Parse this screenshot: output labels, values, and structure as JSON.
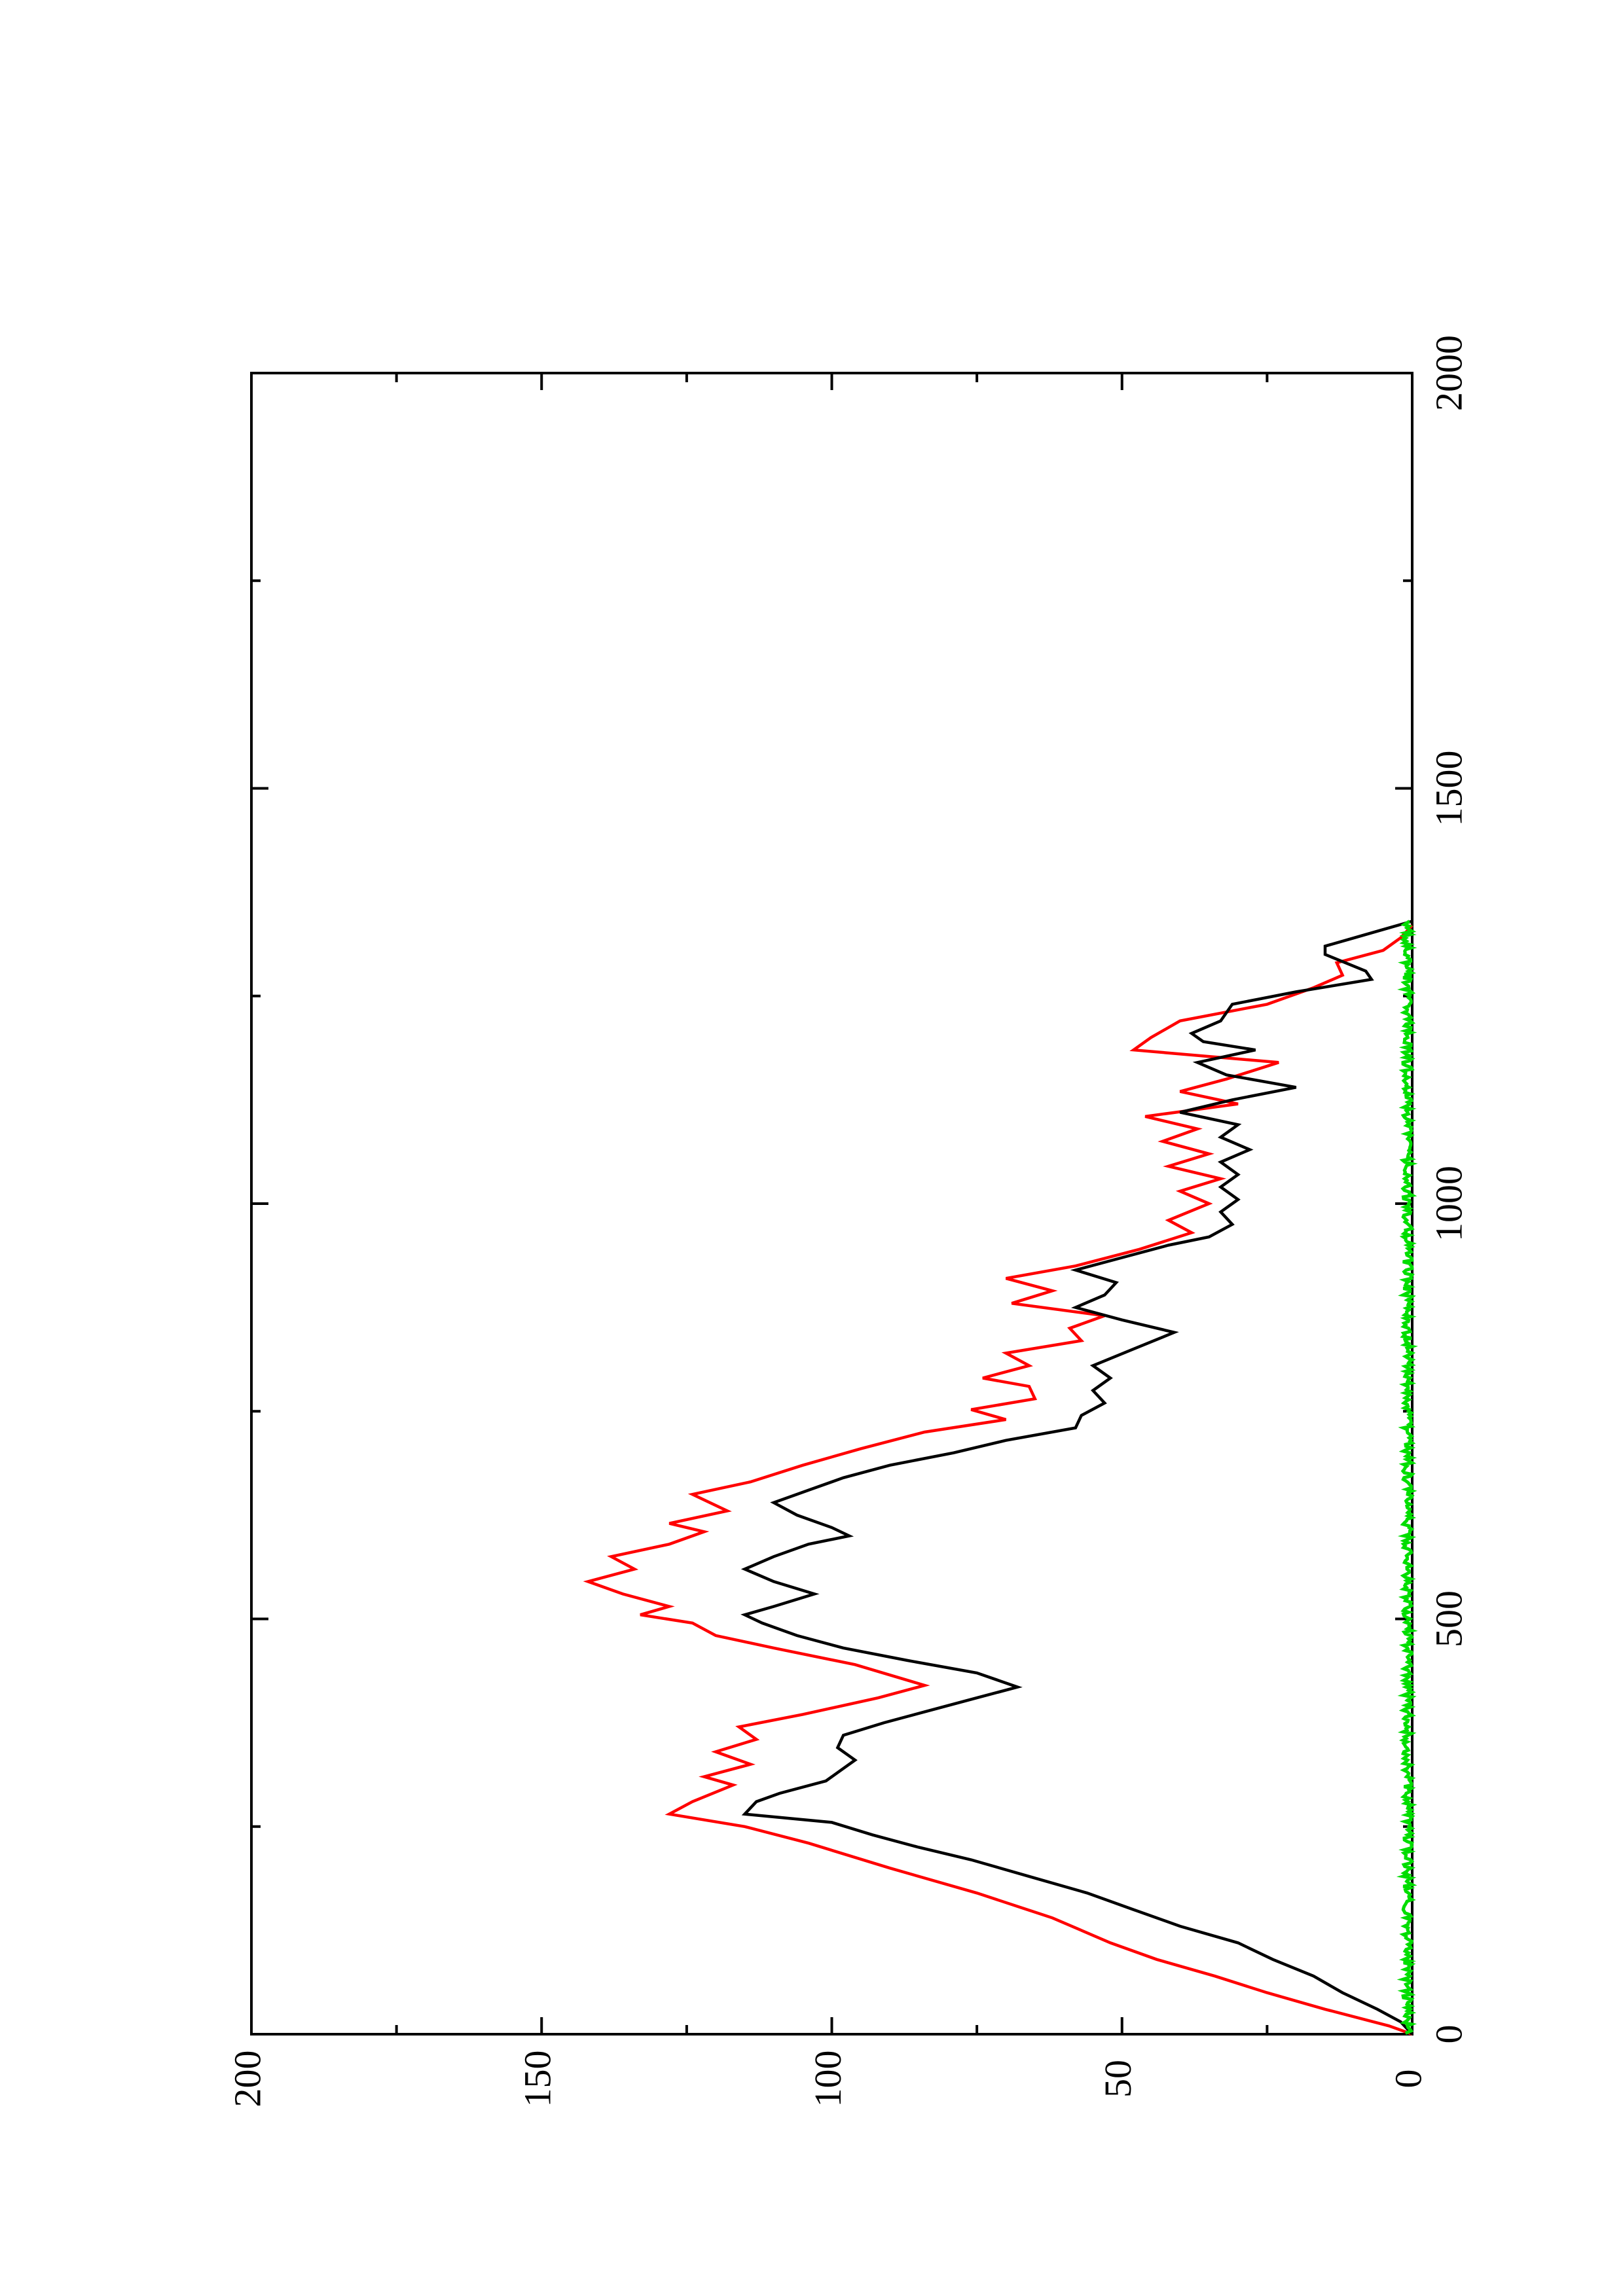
{
  "chart_data": {
    "type": "line",
    "orientation": "rotated-90-ccw",
    "title": "",
    "xlabel": "",
    "ylabel": "",
    "xlim": [
      0,
      2000
    ],
    "ylim": [
      0,
      200
    ],
    "x_ticks": [
      0,
      500,
      1000,
      1500,
      2000
    ],
    "y_ticks": [
      0,
      50,
      100,
      150,
      200
    ],
    "x_minor_step": 250,
    "y_minor_step": 25,
    "grid": false,
    "legend": "none",
    "series": [
      {
        "color": "#ff0000",
        "points": [
          [
            0,
            0
          ],
          [
            10,
            4
          ],
          [
            30,
            15
          ],
          [
            50,
            25
          ],
          [
            70,
            34
          ],
          [
            90,
            44
          ],
          [
            110,
            52
          ],
          [
            140,
            62
          ],
          [
            170,
            75
          ],
          [
            200,
            90
          ],
          [
            230,
            104
          ],
          [
            250,
            115
          ],
          [
            265,
            128
          ],
          [
            280,
            124
          ],
          [
            300,
            117
          ],
          [
            310,
            122
          ],
          [
            325,
            114
          ],
          [
            340,
            120
          ],
          [
            355,
            113
          ],
          [
            370,
            116
          ],
          [
            385,
            105
          ],
          [
            405,
            92
          ],
          [
            420,
            84
          ],
          [
            445,
            96
          ],
          [
            465,
            110
          ],
          [
            480,
            120
          ],
          [
            495,
            124
          ],
          [
            505,
            133
          ],
          [
            515,
            128
          ],
          [
            530,
            136
          ],
          [
            545,
            142
          ],
          [
            560,
            134
          ],
          [
            575,
            138
          ],
          [
            590,
            128
          ],
          [
            605,
            122
          ],
          [
            615,
            128
          ],
          [
            630,
            118
          ],
          [
            650,
            124
          ],
          [
            665,
            114
          ],
          [
            685,
            105
          ],
          [
            705,
            95
          ],
          [
            725,
            84
          ],
          [
            740,
            70
          ],
          [
            752,
            76
          ],
          [
            765,
            65
          ],
          [
            780,
            66
          ],
          [
            790,
            74
          ],
          [
            805,
            66
          ],
          [
            820,
            70
          ],
          [
            835,
            57
          ],
          [
            850,
            59
          ],
          [
            865,
            53
          ],
          [
            880,
            69
          ],
          [
            895,
            62
          ],
          [
            910,
            70
          ],
          [
            925,
            58
          ],
          [
            945,
            47
          ],
          [
            965,
            38
          ],
          [
            980,
            42
          ],
          [
            1000,
            35
          ],
          [
            1015,
            40
          ],
          [
            1030,
            33
          ],
          [
            1045,
            42
          ],
          [
            1060,
            35
          ],
          [
            1075,
            43
          ],
          [
            1090,
            37
          ],
          [
            1105,
            46
          ],
          [
            1120,
            30
          ],
          [
            1135,
            40
          ],
          [
            1150,
            32
          ],
          [
            1170,
            23
          ],
          [
            1185,
            48
          ],
          [
            1200,
            45
          ],
          [
            1220,
            40
          ],
          [
            1240,
            25
          ],
          [
            1260,
            17
          ],
          [
            1275,
            12
          ],
          [
            1290,
            13
          ],
          [
            1305,
            5
          ],
          [
            1320,
            2
          ],
          [
            1335,
            0
          ]
        ]
      },
      {
        "color": "#000000",
        "points": [
          [
            0,
            0
          ],
          [
            15,
            2
          ],
          [
            30,
            6
          ],
          [
            50,
            12
          ],
          [
            70,
            17
          ],
          [
            90,
            24
          ],
          [
            110,
            30
          ],
          [
            130,
            40
          ],
          [
            150,
            48
          ],
          [
            170,
            56
          ],
          [
            190,
            66
          ],
          [
            210,
            76
          ],
          [
            225,
            85
          ],
          [
            240,
            93
          ],
          [
            255,
            100
          ],
          [
            265,
            115
          ],
          [
            280,
            113
          ],
          [
            290,
            109
          ],
          [
            305,
            101
          ],
          [
            320,
            98
          ],
          [
            330,
            96
          ],
          [
            345,
            99
          ],
          [
            360,
            98
          ],
          [
            375,
            91
          ],
          [
            390,
            83
          ],
          [
            405,
            75
          ],
          [
            418,
            68
          ],
          [
            435,
            75
          ],
          [
            450,
            87
          ],
          [
            465,
            98
          ],
          [
            480,
            106
          ],
          [
            495,
            112
          ],
          [
            505,
            115
          ],
          [
            515,
            110
          ],
          [
            530,
            103
          ],
          [
            545,
            110
          ],
          [
            560,
            115
          ],
          [
            575,
            110
          ],
          [
            590,
            104
          ],
          [
            600,
            97
          ],
          [
            610,
            100
          ],
          [
            625,
            106
          ],
          [
            640,
            110
          ],
          [
            655,
            104
          ],
          [
            670,
            98
          ],
          [
            685,
            90
          ],
          [
            700,
            79
          ],
          [
            715,
            70
          ],
          [
            730,
            58
          ],
          [
            745,
            57
          ],
          [
            760,
            53
          ],
          [
            775,
            55
          ],
          [
            790,
            52
          ],
          [
            805,
            55
          ],
          [
            825,
            48
          ],
          [
            845,
            41
          ],
          [
            860,
            50
          ],
          [
            875,
            58
          ],
          [
            890,
            53
          ],
          [
            905,
            51
          ],
          [
            920,
            58
          ],
          [
            935,
            50
          ],
          [
            950,
            42
          ],
          [
            960,
            35
          ],
          [
            975,
            31
          ],
          [
            990,
            33
          ],
          [
            1005,
            30
          ],
          [
            1020,
            33
          ],
          [
            1035,
            30
          ],
          [
            1050,
            33
          ],
          [
            1065,
            28
          ],
          [
            1080,
            33
          ],
          [
            1095,
            30
          ],
          [
            1110,
            40
          ],
          [
            1125,
            31
          ],
          [
            1140,
            20
          ],
          [
            1155,
            32
          ],
          [
            1170,
            37
          ],
          [
            1185,
            27
          ],
          [
            1195,
            36
          ],
          [
            1205,
            38
          ],
          [
            1220,
            33
          ],
          [
            1240,
            31
          ],
          [
            1255,
            20
          ],
          [
            1270,
            7
          ],
          [
            1280,
            8
          ],
          [
            1300,
            15
          ],
          [
            1310,
            15
          ],
          [
            1320,
            10
          ],
          [
            1330,
            5
          ],
          [
            1340,
            0
          ]
        ]
      },
      {
        "color": "#00dd00",
        "style": "noise-band-near-zero",
        "x_range": [
          0,
          1340
        ],
        "amplitude": 1
      }
    ]
  }
}
